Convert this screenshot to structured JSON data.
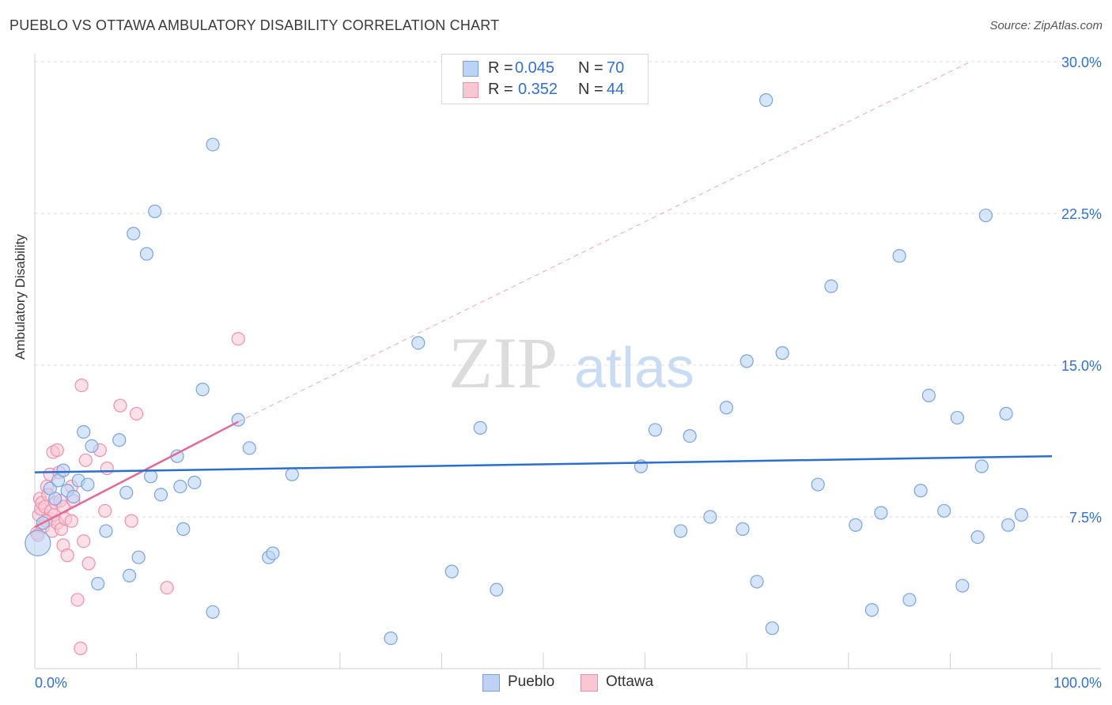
{
  "title": "PUEBLO VS OTTAWA AMBULATORY DISABILITY CORRELATION CHART",
  "source": "Source: ZipAtlas.com",
  "watermark": {
    "zip": "ZIP",
    "atlas": "atlas"
  },
  "colors": {
    "pueblo_fill": "#bcd3f5",
    "pueblo_stroke": "#7aa3dc",
    "pueblo_line": "#2a6fcc",
    "ottawa_fill": "#f9c6d4",
    "ottawa_stroke": "#ee90ad",
    "ottawa_line": "#e26a96",
    "axis_text": "#3570c8",
    "grid": "#e2e2e2"
  },
  "legend": {
    "pueblo": {
      "r_label": "R =",
      "r_value": "0.045",
      "n_label": "N =",
      "n_value": "70"
    },
    "ottawa": {
      "r_label": "R =",
      "r_value": "0.352",
      "n_label": "N =",
      "n_value": "44"
    }
  },
  "chart_data": {
    "type": "scatter",
    "title": "PUEBLO VS OTTAWA AMBULATORY DISABILITY CORRELATION CHART",
    "xlabel": "",
    "ylabel": "Ambulatory Disability",
    "xlim": [
      0,
      100
    ],
    "ylim": [
      0,
      30
    ],
    "x_tick_labels": [
      "0.0%",
      "100.0%"
    ],
    "y_ticks": [
      7.5,
      15.0,
      22.5,
      30.0
    ],
    "y_tick_labels": [
      "7.5%",
      "15.0%",
      "22.5%",
      "30.0%"
    ],
    "grid": true,
    "legend_labels": [
      "Pueblo",
      "Ottawa"
    ],
    "series": [
      {
        "name": "Pueblo",
        "trend": {
          "x": [
            0,
            100
          ],
          "y": [
            9.7,
            10.5
          ]
        },
        "points": [
          [
            0.3,
            6.2
          ],
          [
            0.8,
            7.2
          ],
          [
            1.5,
            8.9
          ],
          [
            2.0,
            8.4
          ],
          [
            2.3,
            9.3
          ],
          [
            2.8,
            9.8
          ],
          [
            3.2,
            8.8
          ],
          [
            3.8,
            8.5
          ],
          [
            4.3,
            9.3
          ],
          [
            4.8,
            11.7
          ],
          [
            5.2,
            9.1
          ],
          [
            5.6,
            11.0
          ],
          [
            6.2,
            4.2
          ],
          [
            7.0,
            6.8
          ],
          [
            8.3,
            11.3
          ],
          [
            9.0,
            8.7
          ],
          [
            9.3,
            4.6
          ],
          [
            9.7,
            21.5
          ],
          [
            10.2,
            5.5
          ],
          [
            11.0,
            20.5
          ],
          [
            11.4,
            9.5
          ],
          [
            11.8,
            22.6
          ],
          [
            12.4,
            8.6
          ],
          [
            14.0,
            10.5
          ],
          [
            14.3,
            9.0
          ],
          [
            14.6,
            6.9
          ],
          [
            15.7,
            9.2
          ],
          [
            16.5,
            13.8
          ],
          [
            17.5,
            25.9
          ],
          [
            17.5,
            2.8
          ],
          [
            20.0,
            12.3
          ],
          [
            21.1,
            10.9
          ],
          [
            23.0,
            5.5
          ],
          [
            23.4,
            5.7
          ],
          [
            25.3,
            9.6
          ],
          [
            35.0,
            1.5
          ],
          [
            37.7,
            16.1
          ],
          [
            41.0,
            4.8
          ],
          [
            43.8,
            11.9
          ],
          [
            45.4,
            3.9
          ],
          [
            59.6,
            10.0
          ],
          [
            61.0,
            11.8
          ],
          [
            63.5,
            6.8
          ],
          [
            64.4,
            11.5
          ],
          [
            66.4,
            7.5
          ],
          [
            68.0,
            12.9
          ],
          [
            69.6,
            6.9
          ],
          [
            70.0,
            15.2
          ],
          [
            71.0,
            4.3
          ],
          [
            71.9,
            28.1
          ],
          [
            72.5,
            2.0
          ],
          [
            73.5,
            15.6
          ],
          [
            77.0,
            9.1
          ],
          [
            78.3,
            18.9
          ],
          [
            80.7,
            7.1
          ],
          [
            82.3,
            2.9
          ],
          [
            83.2,
            7.7
          ],
          [
            85.0,
            20.4
          ],
          [
            86.0,
            3.4
          ],
          [
            87.1,
            8.8
          ],
          [
            87.9,
            13.5
          ],
          [
            89.4,
            7.8
          ],
          [
            90.7,
            12.4
          ],
          [
            91.2,
            4.1
          ],
          [
            92.7,
            6.5
          ],
          [
            93.1,
            10.0
          ],
          [
            93.5,
            22.4
          ],
          [
            95.5,
            12.6
          ],
          [
            95.7,
            7.1
          ],
          [
            97.0,
            7.6
          ]
        ]
      },
      {
        "name": "Ottawa",
        "trend": {
          "x": [
            0,
            20
          ],
          "y": [
            7.0,
            12.2
          ]
        },
        "trend_extension": {
          "x": [
            20,
            92
          ],
          "y": [
            12.2,
            30.0
          ]
        },
        "points": [
          [
            0.2,
            6.7
          ],
          [
            0.4,
            7.6
          ],
          [
            0.5,
            8.4
          ],
          [
            0.6,
            7.9
          ],
          [
            0.7,
            8.2
          ],
          [
            0.8,
            7.0
          ],
          [
            1.0,
            8.0
          ],
          [
            1.2,
            9.0
          ],
          [
            1.3,
            8.6
          ],
          [
            1.5,
            7.4
          ],
          [
            1.5,
            9.6
          ],
          [
            1.6,
            7.8
          ],
          [
            1.7,
            6.8
          ],
          [
            1.8,
            10.7
          ],
          [
            1.9,
            7.6
          ],
          [
            2.0,
            8.2
          ],
          [
            2.2,
            10.8
          ],
          [
            2.2,
            7.2
          ],
          [
            2.4,
            9.7
          ],
          [
            2.5,
            8.3
          ],
          [
            2.6,
            6.9
          ],
          [
            2.8,
            8.0
          ],
          [
            2.8,
            6.1
          ],
          [
            3.0,
            7.4
          ],
          [
            3.2,
            5.6
          ],
          [
            3.6,
            7.3
          ],
          [
            3.6,
            9.0
          ],
          [
            3.8,
            8.3
          ],
          [
            4.2,
            3.4
          ],
          [
            4.5,
            1.0
          ],
          [
            4.6,
            14.0
          ],
          [
            4.8,
            6.3
          ],
          [
            5.0,
            10.3
          ],
          [
            5.3,
            5.2
          ],
          [
            6.4,
            10.8
          ],
          [
            6.9,
            7.8
          ],
          [
            7.1,
            9.9
          ],
          [
            8.4,
            13.0
          ],
          [
            9.5,
            7.3
          ],
          [
            10.0,
            12.6
          ],
          [
            13.0,
            4.0
          ],
          [
            20.0,
            16.3
          ],
          [
            0.3,
            6.6
          ],
          [
            1.1,
            7.3
          ]
        ]
      }
    ]
  }
}
